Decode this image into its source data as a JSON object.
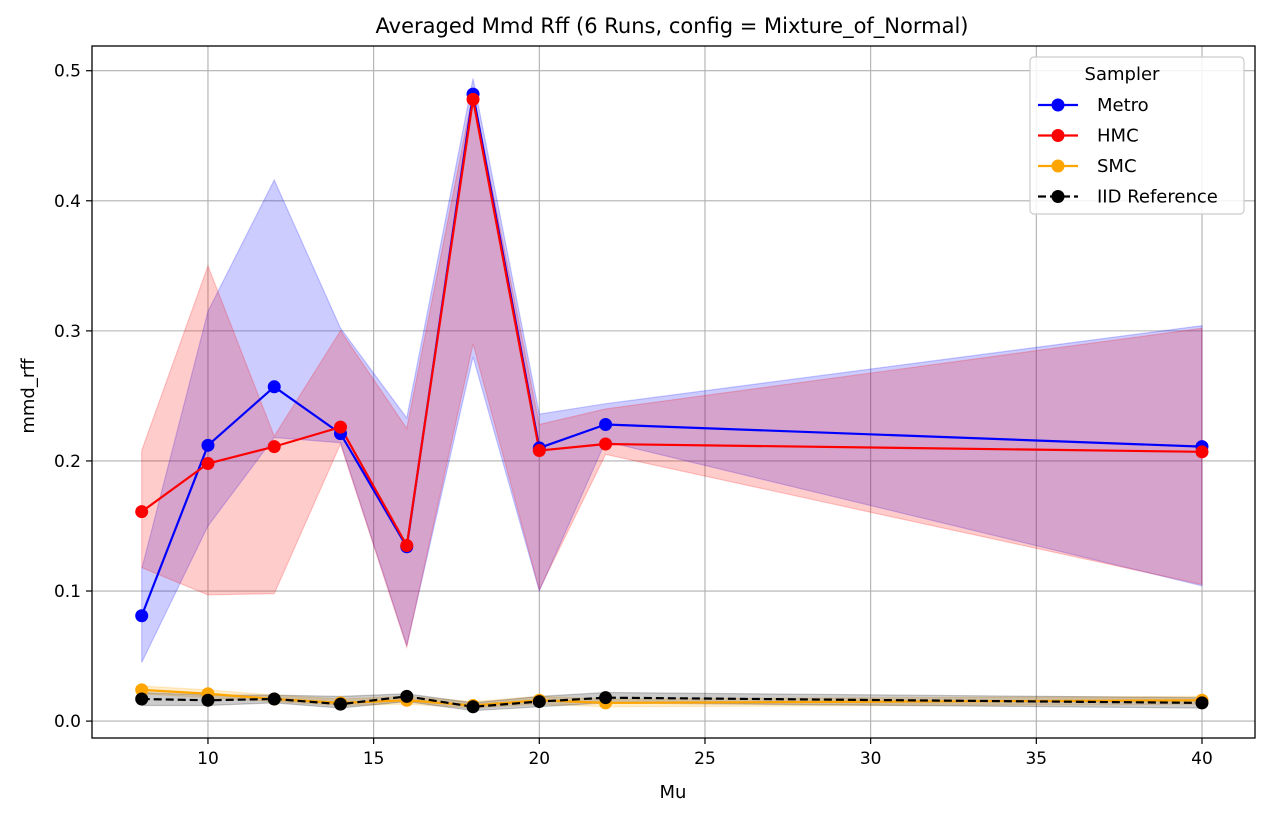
{
  "chart_data": {
    "type": "line",
    "title": "Averaged Mmd Rff (6 Runs, config = Mixture_of_Normal)",
    "xlabel": "Mu",
    "ylabel": "mmd_rff",
    "xlim": [
      6.5,
      41.6
    ],
    "ylim": [
      -0.013,
      0.519
    ],
    "xticks": [
      10,
      15,
      20,
      25,
      30,
      35,
      40
    ],
    "xtick_labels": [
      "10",
      "15",
      "20",
      "25",
      "30",
      "35",
      "40"
    ],
    "yticks": [
      0.0,
      0.1,
      0.2,
      0.3,
      0.4,
      0.5
    ],
    "ytick_labels": [
      "0.0",
      "0.1",
      "0.2",
      "0.3",
      "0.4",
      "0.5"
    ],
    "grid": true,
    "legend": {
      "title": "Sampler",
      "placement": "top-right"
    },
    "x": [
      8,
      10,
      12,
      14,
      16,
      18,
      20,
      22,
      40
    ],
    "series": [
      {
        "name": "Metro",
        "color": "#0000ff",
        "linestyle": "solid",
        "values": [
          0.081,
          0.212,
          0.257,
          0.221,
          0.134,
          0.482,
          0.21,
          0.228,
          0.211
        ],
        "lower": [
          0.045,
          0.15,
          0.218,
          0.214,
          0.058,
          0.28,
          0.1,
          0.215,
          0.104
        ],
        "upper": [
          0.117,
          0.315,
          0.416,
          0.302,
          0.233,
          0.494,
          0.236,
          0.244,
          0.304
        ]
      },
      {
        "name": "HMC",
        "color": "#ff0000",
        "linestyle": "solid",
        "values": [
          0.161,
          0.198,
          0.211,
          0.226,
          0.135,
          0.478,
          0.208,
          0.213,
          0.207
        ],
        "lower": [
          0.118,
          0.097,
          0.098,
          0.213,
          0.057,
          0.29,
          0.101,
          0.205,
          0.105
        ],
        "upper": [
          0.208,
          0.35,
          0.219,
          0.3,
          0.225,
          0.483,
          0.228,
          0.24,
          0.302
        ]
      },
      {
        "name": "SMC",
        "color": "#ffa500",
        "linestyle": "solid",
        "values": [
          0.024,
          0.021,
          0.017,
          0.014,
          0.016,
          0.012,
          0.016,
          0.014,
          0.016
        ],
        "lower": [
          0.021,
          0.018,
          0.015,
          0.012,
          0.013,
          0.01,
          0.013,
          0.011,
          0.013
        ],
        "upper": [
          0.027,
          0.024,
          0.02,
          0.017,
          0.019,
          0.015,
          0.019,
          0.017,
          0.019
        ]
      },
      {
        "name": "IID Reference",
        "color": "#000000",
        "linestyle": "dashed",
        "values": [
          0.017,
          0.016,
          0.017,
          0.013,
          0.019,
          0.011,
          0.015,
          0.018,
          0.014
        ],
        "lower": [
          0.012,
          0.012,
          0.014,
          0.01,
          0.015,
          0.008,
          0.011,
          0.014,
          0.01
        ],
        "upper": [
          0.022,
          0.02,
          0.02,
          0.019,
          0.021,
          0.014,
          0.019,
          0.022,
          0.018
        ]
      }
    ]
  }
}
